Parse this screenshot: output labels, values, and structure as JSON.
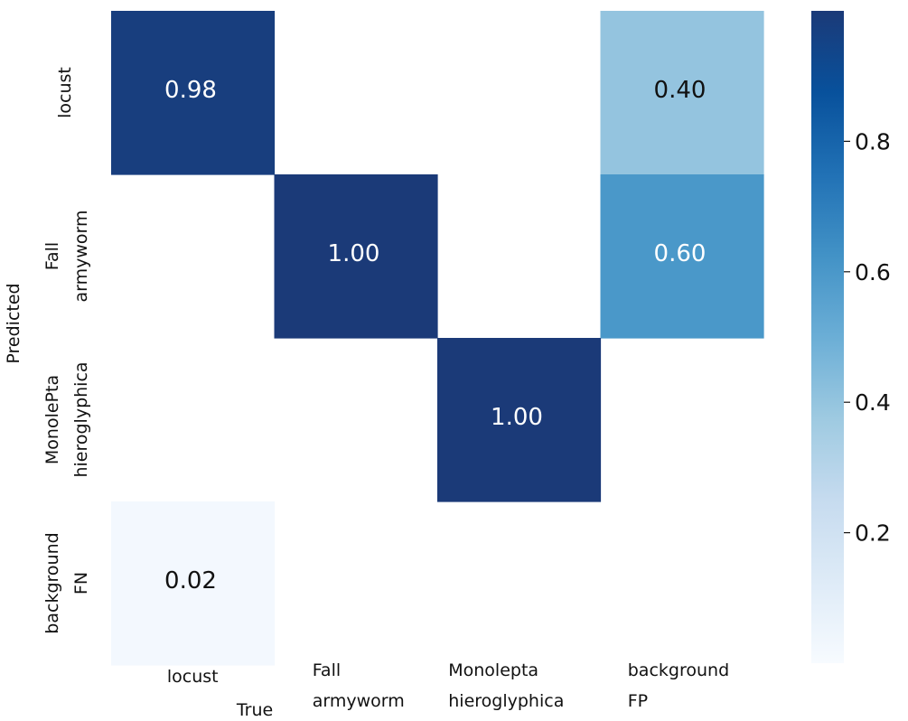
{
  "chart_data": {
    "type": "heatmap",
    "title": "",
    "xlabel": "True",
    "ylabel": "Predicted",
    "x_categories": [
      [
        "locust"
      ],
      [
        "Fall",
        "armyworm"
      ],
      [
        "Monolepta",
        "hieroglyphica"
      ],
      [
        "background",
        "FP"
      ]
    ],
    "y_categories": [
      [
        "locust"
      ],
      [
        "Fall",
        "armyworm"
      ],
      [
        "MonolePta",
        "hieroglyphica"
      ],
      [
        "background",
        "FN"
      ]
    ],
    "values": [
      [
        0.98,
        null,
        null,
        0.4
      ],
      [
        null,
        1.0,
        null,
        0.6
      ],
      [
        null,
        null,
        1.0,
        null
      ],
      [
        0.02,
        null,
        null,
        null
      ]
    ],
    "value_labels": [
      [
        "0.98",
        "",
        "",
        "0.40"
      ],
      [
        "",
        "1.00",
        "",
        "0.60"
      ],
      [
        "",
        "",
        "1.00",
        ""
      ],
      [
        "0.02",
        "",
        "",
        ""
      ]
    ],
    "colorbar": {
      "range": [
        0,
        1
      ],
      "ticks": [
        0.2,
        0.4,
        0.6,
        0.8
      ],
      "tick_labels": [
        "0.2",
        "0.4",
        "0.6",
        "0.8"
      ]
    },
    "colormap": "Blues",
    "colors": {
      "low": "#f7fbff",
      "high": "#1b3a78"
    }
  }
}
